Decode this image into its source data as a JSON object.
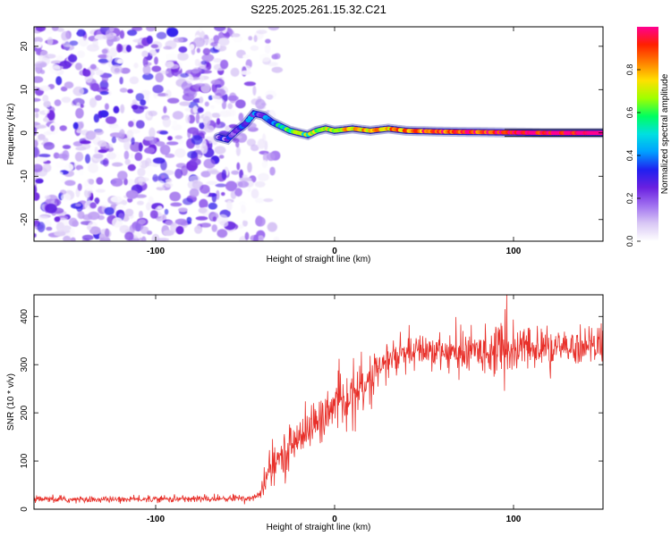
{
  "figure_title": "S225.2025.261.15.32.C21",
  "colors": {
    "signal_line": "#e8302a",
    "ridge_line": "#000000",
    "colormap": [
      "#ffffff",
      "#d9c8f5",
      "#a070f0",
      "#6a20e0",
      "#2020f0",
      "#00a0ff",
      "#00e0e0",
      "#00ff60",
      "#a0ff00",
      "#ffe000",
      "#ff8000",
      "#ff2000",
      "#ff0090"
    ]
  },
  "chart_data": [
    {
      "type": "heatmap",
      "title": "S225.2025.261.15.32.C21",
      "xlabel": "Height of straight line (km)",
      "ylabel": "Frequency (Hz)",
      "xlim": [
        -168,
        150
      ],
      "ylim": [
        -25,
        24.5
      ],
      "x_ticks": [
        -100,
        0,
        100
      ],
      "x_tick_labels": [
        "-100",
        "0",
        "100"
      ],
      "y_ticks": [
        -20,
        -10,
        0,
        10,
        20
      ],
      "y_tick_labels": [
        "-20",
        "-10",
        "0",
        "10",
        "20"
      ],
      "noise_region_x": [
        -168,
        -40
      ],
      "ridge": {
        "x": [
          -65,
          -60,
          -55,
          -50,
          -45,
          -40,
          -35,
          -30,
          -25,
          -20,
          -15,
          -10,
          -5,
          0,
          10,
          20,
          30,
          40,
          60,
          80,
          100,
          120,
          150
        ],
        "y": [
          -1,
          -1.5,
          0.5,
          2,
          4.5,
          4,
          2.5,
          1.5,
          0.5,
          0,
          -0.5,
          0.5,
          1,
          0.5,
          1,
          0.5,
          1,
          0.5,
          0.3,
          0.2,
          0.1,
          0,
          0
        ],
        "amp": [
          0.2,
          0.25,
          0.3,
          0.35,
          0.35,
          0.3,
          0.45,
          0.5,
          0.55,
          0.6,
          0.6,
          0.65,
          0.7,
          0.7,
          0.75,
          0.8,
          0.8,
          0.85,
          0.9,
          0.92,
          0.95,
          0.97,
          1.0
        ]
      },
      "colorbar": {
        "label": "Normalized spectral amplitude",
        "range": [
          0,
          1
        ],
        "ticks": [
          0,
          0.2,
          0.4,
          0.6,
          0.8
        ],
        "tick_labels": [
          "0.0",
          "0.2",
          "0.4",
          "0.6",
          "0.8"
        ]
      }
    },
    {
      "type": "line",
      "xlabel": "Height of straight line (km)",
      "ylabel": "SNR (10 * v/v)",
      "xlim": [
        -168,
        150
      ],
      "ylim": [
        0,
        445
      ],
      "x_ticks": [
        -100,
        0,
        100
      ],
      "x_tick_labels": [
        "-100",
        "0",
        "100"
      ],
      "y_ticks": [
        0,
        100,
        200,
        300,
        400
      ],
      "y_tick_labels": [
        "0",
        "100",
        "200",
        "300",
        "400"
      ],
      "series": [
        {
          "name": "SNR",
          "envelope_x": [
            -168,
            -140,
            -100,
            -60,
            -44,
            -40,
            -36,
            -30,
            -20,
            -10,
            0,
            10,
            20,
            30,
            40,
            50,
            60,
            70,
            80,
            90,
            100,
            110,
            120,
            130,
            140,
            150
          ],
          "envelope_mean": [
            20,
            20,
            21,
            22,
            24,
            45,
            80,
            110,
            150,
            180,
            210,
            240,
            270,
            310,
            320,
            330,
            330,
            320,
            330,
            330,
            330,
            335,
            330,
            335,
            340,
            345
          ],
          "envelope_spread": [
            6,
            6,
            6,
            7,
            8,
            25,
            35,
            40,
            40,
            45,
            45,
            45,
            45,
            40,
            35,
            35,
            35,
            40,
            40,
            45,
            50,
            40,
            35,
            35,
            35,
            35
          ],
          "peak_max": 445
        }
      ]
    }
  ]
}
